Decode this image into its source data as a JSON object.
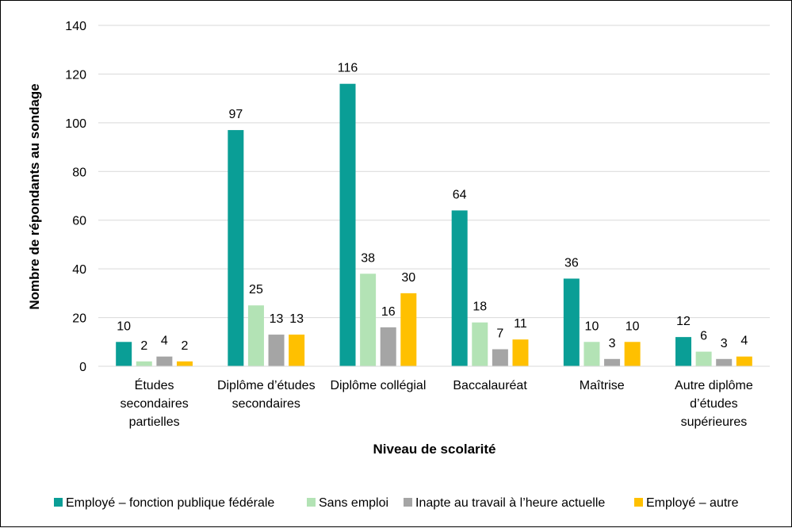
{
  "chart_data": {
    "type": "bar",
    "title": "",
    "xlabel": "Niveau de scolarité",
    "ylabel": "Nombre de répondants au sondage",
    "ylim": [
      0,
      140
    ],
    "yticks": [
      0,
      20,
      40,
      60,
      80,
      100,
      120,
      140
    ],
    "grid": true,
    "legend_position": "bottom",
    "categories": [
      [
        "Études",
        "secondaires",
        "partielles"
      ],
      [
        "Diplôme d’études",
        "secondaires"
      ],
      [
        "Diplôme collégial"
      ],
      [
        "Baccalauréat"
      ],
      [
        "Maîtrise"
      ],
      [
        "Autre diplôme",
        "d’études",
        "supérieures"
      ]
    ],
    "series": [
      {
        "name": "Employé – fonction publique fédérale",
        "color": "#0a9e96",
        "values": [
          10,
          97,
          116,
          64,
          36,
          12
        ]
      },
      {
        "name": "Sans emploi",
        "color": "#b3e3b5",
        "values": [
          2,
          25,
          38,
          18,
          10,
          6
        ]
      },
      {
        "name": "Inapte au travail à l’heure actuelle",
        "color": "#a5a5a5",
        "values": [
          4,
          13,
          16,
          7,
          3,
          3
        ]
      },
      {
        "name": "Employé – autre",
        "color": "#ffc000",
        "values": [
          2,
          13,
          30,
          11,
          10,
          4
        ]
      }
    ]
  }
}
